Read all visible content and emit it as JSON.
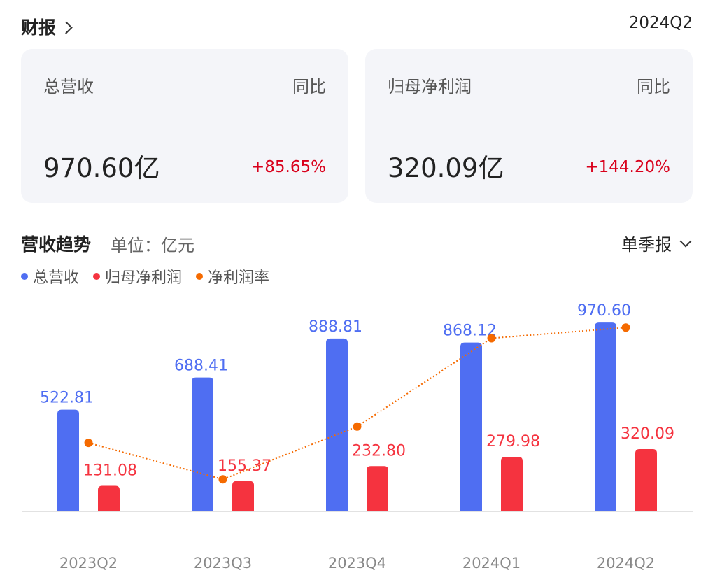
{
  "header": {
    "title": "财报",
    "period": "2024Q2"
  },
  "cards": [
    {
      "label": "总营收",
      "yoy_label": "同比",
      "value": "970.60亿",
      "change": "+85.65%"
    },
    {
      "label": "归母净利润",
      "yoy_label": "同比",
      "value": "320.09亿",
      "change": "+144.20%"
    }
  ],
  "trend": {
    "title": "营收趋势",
    "unit": "单位：亿元",
    "frequency": "单季报"
  },
  "legend": [
    {
      "name": "总营收",
      "color": "#4f6ef2"
    },
    {
      "name": "归母净利润",
      "color": "#f5333f"
    },
    {
      "name": "净利润率",
      "color": "#f56a00"
    }
  ],
  "chart_data": {
    "type": "bar",
    "categories": [
      "2023Q2",
      "2023Q3",
      "2023Q4",
      "2024Q1",
      "2024Q2"
    ],
    "series": [
      {
        "name": "总营收",
        "type": "bar",
        "color": "#4f6ef2",
        "values": [
          522.81,
          688.41,
          888.81,
          868.12,
          970.6
        ],
        "labels": [
          "522.81",
          "688.41",
          "888.81",
          "868.12",
          "970.60"
        ]
      },
      {
        "name": "归母净利润",
        "type": "bar",
        "color": "#f5333f",
        "values": [
          131.08,
          155.37,
          232.8,
          279.98,
          320.09
        ],
        "labels": [
          "131.08",
          "155.37",
          "232.80",
          "279.98",
          "320.09"
        ]
      },
      {
        "name": "净利润率",
        "type": "line",
        "color": "#f56a00",
        "values": [
          25.07,
          22.57,
          26.19,
          32.25,
          32.98
        ]
      }
    ],
    "ylim": [
      0,
      1000
    ],
    "line_ylim": [
      21,
      34
    ],
    "grid": false,
    "legend_position": "top-left"
  }
}
